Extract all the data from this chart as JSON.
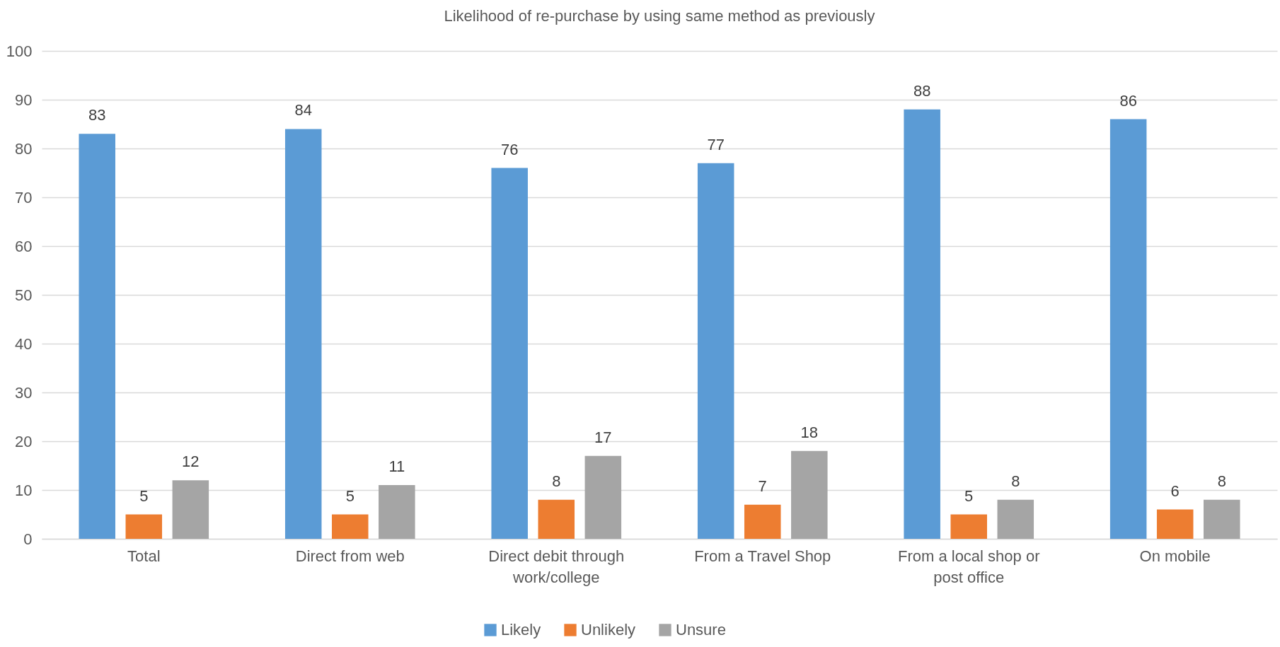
{
  "chart_data": {
    "type": "bar",
    "title": "Likelihood of re-purchase by using same method as previously",
    "categories": [
      "Total",
      "Direct from web",
      "Direct debit through work/college",
      "From a Travel Shop",
      "From a local shop or post office",
      "On mobile"
    ],
    "series": [
      {
        "name": "Likely",
        "color": "#5b9bd5",
        "values": [
          83,
          84,
          76,
          77,
          88,
          86
        ]
      },
      {
        "name": "Unlikely",
        "color": "#ed7d31",
        "values": [
          5,
          5,
          8,
          7,
          5,
          6
        ]
      },
      {
        "name": "Unsure",
        "color": "#a5a5a5",
        "values": [
          12,
          11,
          17,
          18,
          8,
          8
        ]
      }
    ],
    "ylim": [
      0,
      100
    ],
    "yticks": [
      0,
      10,
      20,
      30,
      40,
      50,
      60,
      70,
      80,
      90,
      100
    ],
    "grid": "y",
    "legend": "bottom",
    "data_labels": true
  }
}
